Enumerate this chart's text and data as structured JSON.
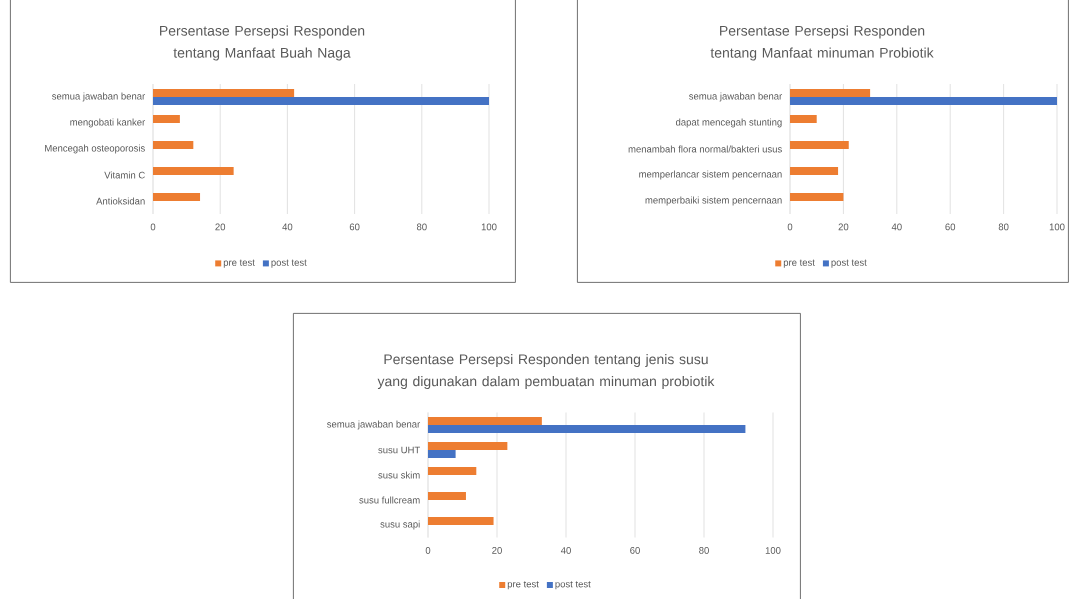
{
  "chart_data": [
    {
      "type": "bar",
      "orientation": "horizontal",
      "title": "Persentase Persepsi Responden tentang Manfaat Buah Naga",
      "categories": [
        "semua jawaban benar",
        "mengobati kanker",
        "Mencegah osteoporosis",
        "Vitamin C",
        "Antioksidan"
      ],
      "xlim": [
        0,
        100
      ],
      "xticks": [
        0,
        20,
        40,
        60,
        80,
        100
      ],
      "grid": "x",
      "legend": "bottom",
      "series": [
        {
          "name": "pre test",
          "color": "#ed7d31",
          "values": [
            42,
            8,
            12,
            24,
            14
          ]
        },
        {
          "name": "post test",
          "color": "#4472c4",
          "values": [
            100,
            null,
            null,
            null,
            null
          ]
        }
      ]
    },
    {
      "type": "bar",
      "orientation": "horizontal",
      "title": "Persentase Persepsi Responden tentang Manfaat minuman Probiotik",
      "categories": [
        "semua jawaban benar",
        "dapat mencegah stunting",
        "menambah flora normal/bakteri usus",
        "memperlancar sistem pencernaan",
        "memperbaiki sistem pencernaan"
      ],
      "xlim": [
        0,
        100
      ],
      "xticks": [
        0,
        20,
        40,
        60,
        80,
        100
      ],
      "grid": "x",
      "legend": "bottom",
      "series": [
        {
          "name": "pre test",
          "color": "#ed7d31",
          "values": [
            30,
            10,
            22,
            18,
            20
          ]
        },
        {
          "name": "post test",
          "color": "#4472c4",
          "values": [
            100,
            null,
            null,
            null,
            null
          ]
        }
      ]
    },
    {
      "type": "bar",
      "orientation": "horizontal",
      "title": "Persentase Persepsi Responden tentang jenis susu yang digunakan dalam pembuatan minuman probiotik",
      "categories": [
        "semua jawaban benar",
        "susu UHT",
        "susu skim",
        "susu fullcream",
        "susu sapi"
      ],
      "xlim": [
        0,
        100
      ],
      "xticks": [
        0,
        20,
        40,
        60,
        80,
        100
      ],
      "grid": "x",
      "legend": "bottom",
      "series": [
        {
          "name": "pre test",
          "color": "#ed7d31",
          "values": [
            33,
            23,
            14,
            11,
            19
          ]
        },
        {
          "name": "post test",
          "color": "#4472c4",
          "values": [
            92,
            8,
            null,
            null,
            null
          ]
        }
      ]
    }
  ]
}
